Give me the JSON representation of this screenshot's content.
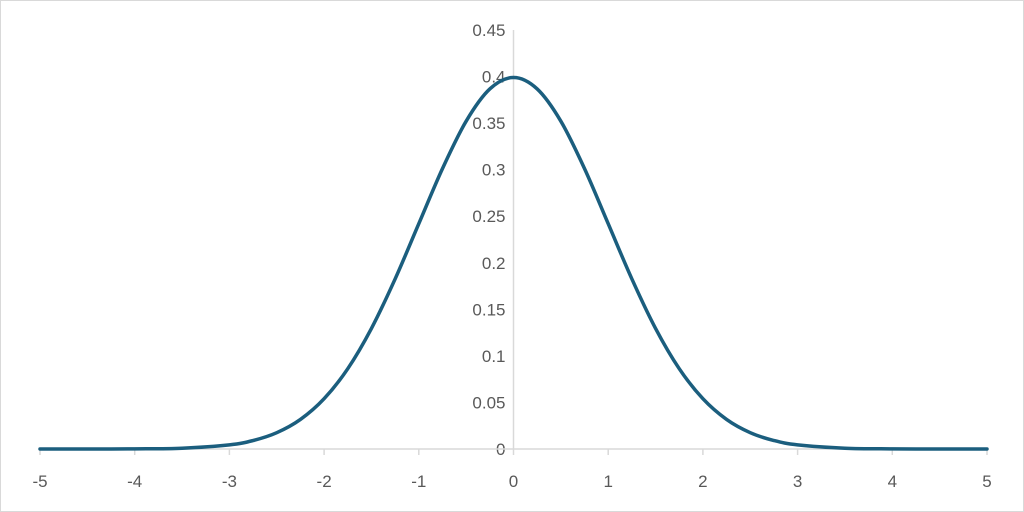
{
  "chart_data": {
    "type": "line",
    "title": "",
    "xlabel": "",
    "ylabel": "",
    "xlim": [
      -5,
      5
    ],
    "ylim": [
      0,
      0.45
    ],
    "x_ticks": [
      -5,
      -4,
      -3,
      -2,
      -1,
      0,
      1,
      2,
      3,
      4,
      5
    ],
    "x_tick_labels": [
      "-5",
      "-4",
      "-3",
      "-2",
      "-1",
      "0",
      "1",
      "2",
      "3",
      "4",
      "5"
    ],
    "y_ticks": [
      0,
      0.05,
      0.1,
      0.15,
      0.2,
      0.25,
      0.3,
      0.35,
      0.4,
      0.45
    ],
    "y_tick_labels": [
      "0",
      "0.05",
      "0.1",
      "0.15",
      "0.2",
      "0.25",
      "0.3",
      "0.35",
      "0.4",
      "0.45"
    ],
    "y_axis_position_x": 0,
    "grid": false,
    "legend": "none",
    "series": [
      {
        "color": "#1b5e7e",
        "x": [
          -5,
          -4.5,
          -4,
          -3.5,
          -3,
          -2.75,
          -2.5,
          -2.25,
          -2,
          -1.75,
          -1.5,
          -1.25,
          -1,
          -0.75,
          -0.5,
          -0.25,
          0,
          0.25,
          0.5,
          0.75,
          1,
          1.25,
          1.5,
          1.75,
          2,
          2.25,
          2.5,
          2.75,
          3,
          3.5,
          4,
          4.5,
          5
        ],
        "y": [
          1.5e-06,
          1.6e-05,
          0.000134,
          0.000873,
          0.004432,
          0.009094,
          0.017528,
          0.03174,
          0.053991,
          0.086277,
          0.129518,
          0.182649,
          0.241971,
          0.301137,
          0.352065,
          0.386668,
          0.398942,
          0.386668,
          0.352065,
          0.301137,
          0.241971,
          0.182649,
          0.129518,
          0.086277,
          0.053991,
          0.03174,
          0.017528,
          0.009094,
          0.004432,
          0.000873,
          0.000134,
          1.6e-05,
          1.5e-06
        ]
      }
    ]
  }
}
